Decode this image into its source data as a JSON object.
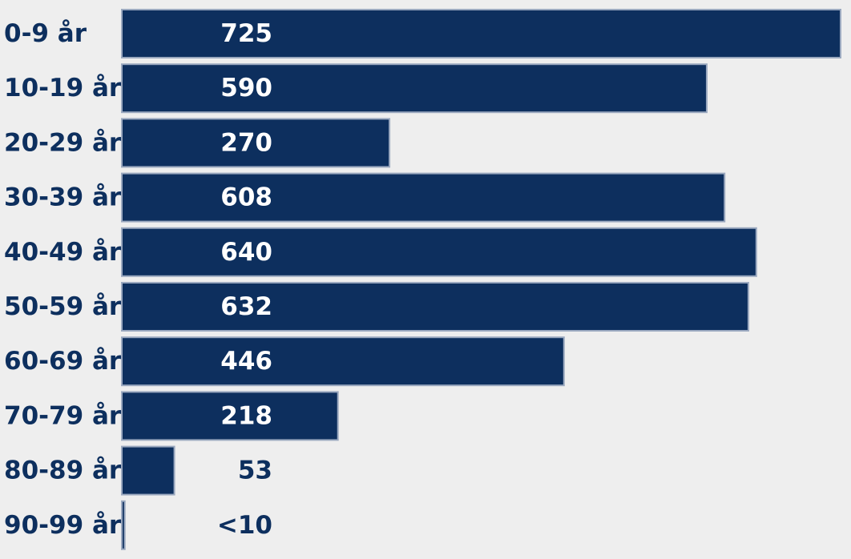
{
  "chart_data": {
    "type": "bar",
    "orientation": "horizontal",
    "categories": [
      "0-9 år",
      "10-19 år",
      "20-29 år",
      "30-39 år",
      "40-49 år",
      "50-59 år",
      "60-69 år",
      "70-79 år",
      "80-89 år",
      "90-99 år"
    ],
    "values": [
      725,
      590,
      270,
      608,
      640,
      632,
      446,
      218,
      53,
      3
    ],
    "value_labels": [
      "725",
      "590",
      "270",
      "608",
      "640",
      "632",
      "446",
      "218",
      "53",
      "<10"
    ],
    "title": "",
    "xlabel": "",
    "ylabel": "",
    "xlim": [
      0,
      725
    ],
    "grid": false,
    "legend": "none"
  },
  "colors": {
    "background": "#eeeeee",
    "bar": "#0d2f5e",
    "bar_edge": "#9aa8bf",
    "category_text": "#0d2f5e",
    "value_text_on_bar": "#ffffff",
    "value_text_off_bar": "#0d2f5e"
  }
}
